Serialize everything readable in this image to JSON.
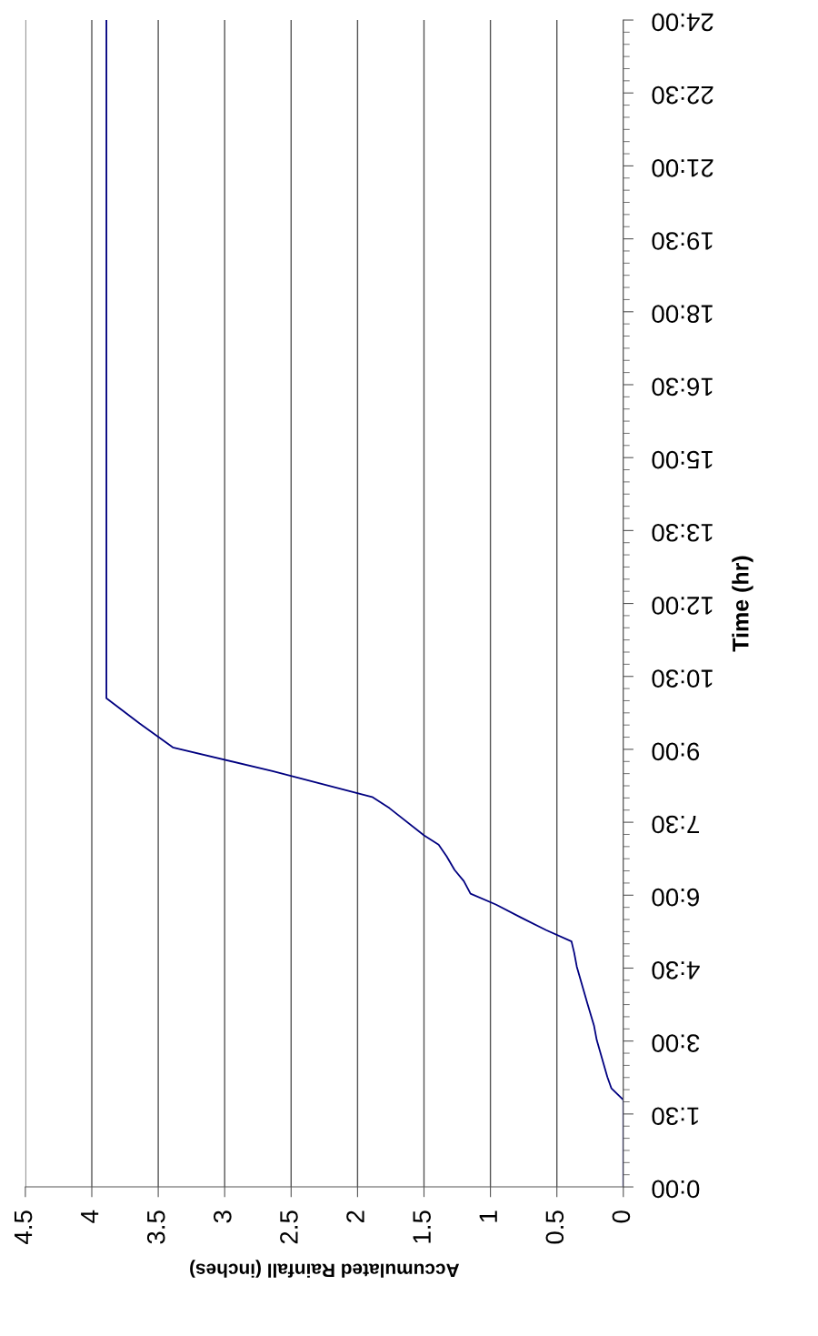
{
  "chart_data": {
    "type": "line",
    "xlabel": "Accumulated Rainfall (inches)",
    "ylabel": "Time (hr)",
    "x": [
      0,
      0,
      0.09,
      0.12,
      0.2,
      0.22,
      0.27,
      0.35,
      0.37,
      0.39,
      0.58,
      0.77,
      0.96,
      1.15,
      1.2,
      1.27,
      1.33,
      1.39,
      1.5,
      1.76,
      1.89,
      2.64,
      3.39,
      3.64,
      3.89,
      3.89
    ],
    "series": [
      {
        "color": "#000080",
        "values": [
          0,
          1.79,
          2.03,
          2.26,
          3.02,
          3.31,
          3.77,
          4.53,
          4.82,
          5.05,
          5.28,
          5.54,
          5.81,
          6.03,
          6.29,
          6.52,
          6.8,
          7.04,
          7.23,
          7.79,
          8.02,
          8.55,
          9.04,
          9.53,
          10.05,
          24
        ]
      }
    ],
    "ylim": [
      0,
      24
    ],
    "yticks": [
      {
        "value": 0,
        "label": "0:00"
      },
      {
        "value": 1.5,
        "label": "1:30"
      },
      {
        "value": 3,
        "label": "3:00"
      },
      {
        "value": 4.5,
        "label": "4:30"
      },
      {
        "value": 6,
        "label": "6:00"
      },
      {
        "value": 7.5,
        "label": "7:30"
      },
      {
        "value": 9,
        "label": "9:00"
      },
      {
        "value": 10.5,
        "label": "10:30"
      },
      {
        "value": 12,
        "label": "12:00"
      },
      {
        "value": 13.5,
        "label": "13:30"
      },
      {
        "value": 15,
        "label": "15:00"
      },
      {
        "value": 16.5,
        "label": "16:30"
      },
      {
        "value": 18,
        "label": "18:00"
      },
      {
        "value": 19.5,
        "label": "19:30"
      },
      {
        "value": 21,
        "label": "21:00"
      },
      {
        "value": 22.5,
        "label": "22:30"
      },
      {
        "value": 24,
        "label": "24:00"
      }
    ],
    "xlim": [
      4.5,
      0
    ],
    "xticks": [
      4.5,
      4,
      3.5,
      3,
      2.5,
      2,
      1.5,
      1,
      0.5,
      0
    ],
    "grid": "x",
    "legend": false,
    "marker": "none",
    "line_style": "solid"
  }
}
